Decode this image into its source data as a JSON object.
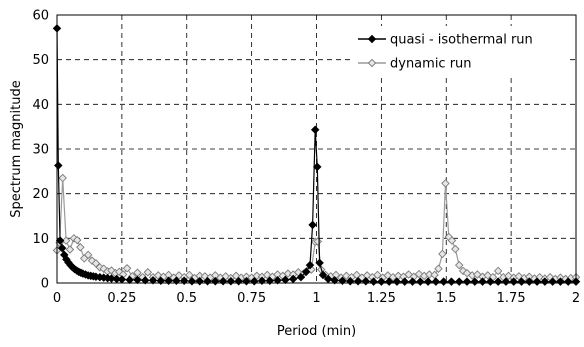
{
  "chart_data": {
    "type": "line",
    "title": "",
    "xlabel": "Period (min)",
    "ylabel": "Spectrum magnitude",
    "xlim": [
      0,
      2
    ],
    "ylim": [
      0,
      60
    ],
    "x_ticks": [
      "0",
      "0.25",
      "0.5",
      "0.75",
      "1",
      "1.25",
      "1.5",
      "1.75",
      "2"
    ],
    "y_ticks": [
      "0",
      "10",
      "20",
      "30",
      "40",
      "50",
      "60"
    ],
    "grid": "dashed",
    "legend_position": "top-right",
    "series": [
      {
        "name": "quasi - isothermal run",
        "marker": "filled-diamond",
        "color": "#000000",
        "points": [
          [
            0.0,
            57.0
          ],
          [
            0.005,
            26.3
          ],
          [
            0.012,
            9.5
          ],
          [
            0.02,
            7.8
          ],
          [
            0.028,
            6.3
          ],
          [
            0.036,
            5.3
          ],
          [
            0.044,
            4.6
          ],
          [
            0.052,
            4.0
          ],
          [
            0.06,
            3.5
          ],
          [
            0.068,
            3.1
          ],
          [
            0.076,
            2.8
          ],
          [
            0.084,
            2.5
          ],
          [
            0.092,
            2.3
          ],
          [
            0.1,
            2.1
          ],
          [
            0.11,
            1.9
          ],
          [
            0.12,
            1.7
          ],
          [
            0.13,
            1.6
          ],
          [
            0.14,
            1.5
          ],
          [
            0.15,
            1.4
          ],
          [
            0.165,
            1.3
          ],
          [
            0.18,
            1.2
          ],
          [
            0.195,
            1.1
          ],
          [
            0.21,
            1.0
          ],
          [
            0.23,
            0.9
          ],
          [
            0.25,
            0.8
          ],
          [
            0.28,
            0.7
          ],
          [
            0.31,
            0.7
          ],
          [
            0.34,
            0.6
          ],
          [
            0.37,
            0.6
          ],
          [
            0.4,
            0.5
          ],
          [
            0.43,
            0.5
          ],
          [
            0.46,
            0.5
          ],
          [
            0.49,
            0.5
          ],
          [
            0.52,
            0.4
          ],
          [
            0.55,
            0.4
          ],
          [
            0.58,
            0.4
          ],
          [
            0.61,
            0.4
          ],
          [
            0.64,
            0.4
          ],
          [
            0.67,
            0.4
          ],
          [
            0.7,
            0.4
          ],
          [
            0.73,
            0.4
          ],
          [
            0.76,
            0.4
          ],
          [
            0.79,
            0.5
          ],
          [
            0.82,
            0.5
          ],
          [
            0.85,
            0.6
          ],
          [
            0.88,
            0.7
          ],
          [
            0.91,
            0.9
          ],
          [
            0.94,
            1.3
          ],
          [
            0.96,
            2.5
          ],
          [
            0.975,
            4.0
          ],
          [
            0.985,
            13.0
          ],
          [
            0.995,
            34.3
          ],
          [
            1.003,
            26.0
          ],
          [
            1.012,
            4.5
          ],
          [
            1.025,
            1.8
          ],
          [
            1.045,
            0.9
          ],
          [
            1.07,
            0.6
          ],
          [
            1.1,
            0.5
          ],
          [
            1.13,
            0.4
          ],
          [
            1.16,
            0.4
          ],
          [
            1.19,
            0.4
          ],
          [
            1.22,
            0.3
          ],
          [
            1.25,
            0.3
          ],
          [
            1.28,
            0.3
          ],
          [
            1.31,
            0.3
          ],
          [
            1.34,
            0.3
          ],
          [
            1.37,
            0.3
          ],
          [
            1.4,
            0.3
          ],
          [
            1.43,
            0.3
          ],
          [
            1.46,
            0.3
          ],
          [
            1.49,
            0.3
          ],
          [
            1.52,
            0.3
          ],
          [
            1.55,
            0.3
          ],
          [
            1.58,
            0.3
          ],
          [
            1.61,
            0.3
          ],
          [
            1.64,
            0.3
          ],
          [
            1.67,
            0.3
          ],
          [
            1.7,
            0.3
          ],
          [
            1.73,
            0.3
          ],
          [
            1.76,
            0.3
          ],
          [
            1.79,
            0.3
          ],
          [
            1.82,
            0.3
          ],
          [
            1.85,
            0.3
          ],
          [
            1.88,
            0.3
          ],
          [
            1.91,
            0.3
          ],
          [
            1.94,
            0.3
          ],
          [
            1.97,
            0.3
          ],
          [
            2.0,
            0.3
          ]
        ]
      },
      {
        "name": "dynamic run",
        "marker": "open-diamond",
        "color": "#9a9a9a",
        "points": [
          [
            0.0,
            7.3
          ],
          [
            0.01,
            9.0
          ],
          [
            0.022,
            23.5
          ],
          [
            0.035,
            9.5
          ],
          [
            0.05,
            7.5
          ],
          [
            0.065,
            10.0
          ],
          [
            0.078,
            9.6
          ],
          [
            0.09,
            8.0
          ],
          [
            0.105,
            5.5
          ],
          [
            0.12,
            6.3
          ],
          [
            0.135,
            5.0
          ],
          [
            0.15,
            4.4
          ],
          [
            0.165,
            3.5
          ],
          [
            0.18,
            3.2
          ],
          [
            0.195,
            2.6
          ],
          [
            0.21,
            2.8
          ],
          [
            0.225,
            2.2
          ],
          [
            0.24,
            2.5
          ],
          [
            0.255,
            1.9
          ],
          [
            0.27,
            3.3
          ],
          [
            0.29,
            1.5
          ],
          [
            0.31,
            2.3
          ],
          [
            0.33,
            1.3
          ],
          [
            0.35,
            2.4
          ],
          [
            0.37,
            1.3
          ],
          [
            0.39,
            1.7
          ],
          [
            0.41,
            1.4
          ],
          [
            0.43,
            1.8
          ],
          [
            0.45,
            1.2
          ],
          [
            0.47,
            1.7
          ],
          [
            0.49,
            1.3
          ],
          [
            0.51,
            1.8
          ],
          [
            0.53,
            1.1
          ],
          [
            0.55,
            1.6
          ],
          [
            0.57,
            1.5
          ],
          [
            0.59,
            1.2
          ],
          [
            0.61,
            1.7
          ],
          [
            0.63,
            1.2
          ],
          [
            0.65,
            1.5
          ],
          [
            0.67,
            1.1
          ],
          [
            0.69,
            1.6
          ],
          [
            0.71,
            1.2
          ],
          [
            0.73,
            1.4
          ],
          [
            0.75,
            1.2
          ],
          [
            0.77,
            1.6
          ],
          [
            0.79,
            1.4
          ],
          [
            0.81,
            1.8
          ],
          [
            0.83,
            1.4
          ],
          [
            0.85,
            1.9
          ],
          [
            0.87,
            1.6
          ],
          [
            0.89,
            2.1
          ],
          [
            0.91,
            1.9
          ],
          [
            0.93,
            2.4
          ],
          [
            0.95,
            2.1
          ],
          [
            0.965,
            2.8
          ],
          [
            0.98,
            3.0
          ],
          [
            0.995,
            9.2
          ],
          [
            1.005,
            9.3
          ],
          [
            1.018,
            3.0
          ],
          [
            1.035,
            1.8
          ],
          [
            1.055,
            1.5
          ],
          [
            1.075,
            1.8
          ],
          [
            1.095,
            1.2
          ],
          [
            1.115,
            1.6
          ],
          [
            1.135,
            1.3
          ],
          [
            1.155,
            1.8
          ],
          [
            1.175,
            1.2
          ],
          [
            1.195,
            1.7
          ],
          [
            1.215,
            1.3
          ],
          [
            1.235,
            1.8
          ],
          [
            1.255,
            1.2
          ],
          [
            1.275,
            1.7
          ],
          [
            1.295,
            1.3
          ],
          [
            1.315,
            1.6
          ],
          [
            1.335,
            1.4
          ],
          [
            1.355,
            1.9
          ],
          [
            1.375,
            1.4
          ],
          [
            1.395,
            2.0
          ],
          [
            1.415,
            1.6
          ],
          [
            1.435,
            1.9
          ],
          [
            1.455,
            1.8
          ],
          [
            1.47,
            3.2
          ],
          [
            1.485,
            6.5
          ],
          [
            1.497,
            22.3
          ],
          [
            1.51,
            10.3
          ],
          [
            1.522,
            9.5
          ],
          [
            1.535,
            7.6
          ],
          [
            1.55,
            4.0
          ],
          [
            1.565,
            2.7
          ],
          [
            1.58,
            2.2
          ],
          [
            1.6,
            1.7
          ],
          [
            1.62,
            1.9
          ],
          [
            1.64,
            1.4
          ],
          [
            1.66,
            1.7
          ],
          [
            1.68,
            1.3
          ],
          [
            1.7,
            2.7
          ],
          [
            1.72,
            1.3
          ],
          [
            1.74,
            1.6
          ],
          [
            1.76,
            1.2
          ],
          [
            1.78,
            1.5
          ],
          [
            1.8,
            1.1
          ],
          [
            1.82,
            1.4
          ],
          [
            1.84,
            1.0
          ],
          [
            1.86,
            1.3
          ],
          [
            1.88,
            1.0
          ],
          [
            1.9,
            1.3
          ],
          [
            1.92,
            0.9
          ],
          [
            1.94,
            1.2
          ],
          [
            1.96,
            0.9
          ],
          [
            1.98,
            1.1
          ],
          [
            2.0,
            1.3
          ]
        ]
      }
    ]
  }
}
